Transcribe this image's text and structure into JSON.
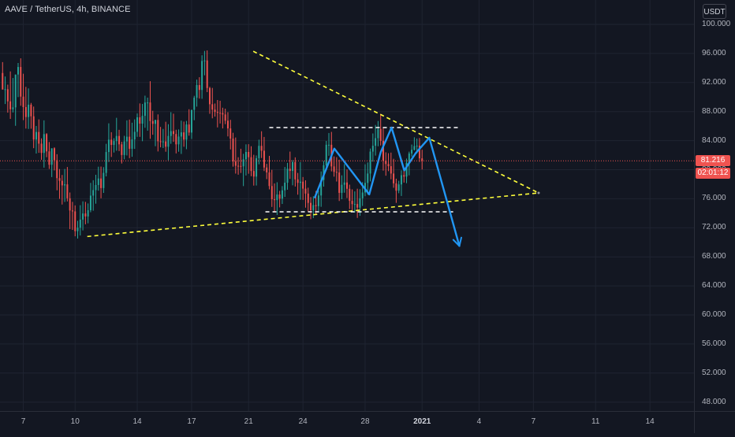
{
  "header": {
    "title": "AAVE / TetherUS, 4h, BINANCE",
    "currency": "USDT"
  },
  "price_scale": {
    "last_price": "81.216",
    "countdown": "02:01:12"
  },
  "colors": {
    "background": "#131722",
    "up_candle": "#26a69a",
    "down_candle": "#ef5350",
    "trendline": "#ffff3b",
    "neckline": "#ffffff",
    "pattern": "#2196f3",
    "last_price_line": "#ef5350"
  },
  "chart_data": {
    "type": "candlestick",
    "title": "AAVE / TetherUS, 4h, BINANCE",
    "x_ticks": [
      "7",
      "10",
      "14",
      "17",
      "21",
      "24",
      "28",
      "2021",
      "4",
      "7",
      "11",
      "14"
    ],
    "y_ticks": [
      "100.000",
      "96.000",
      "92.000",
      "88.000",
      "84.000",
      "80.000",
      "76.000",
      "72.000",
      "68.000",
      "64.000",
      "60.000",
      "56.000",
      "52.000",
      "48.000"
    ],
    "ylim": [
      46,
      102
    ],
    "last_price": 81.216,
    "grid": true,
    "annotations": {
      "triangle_upper": [
        [
          97.8,
          96.3
        ],
        [
          208.0,
          76.8
        ]
      ],
      "triangle_lower": [
        [
          33.7,
          70.8
        ],
        [
          208.0,
          76.8
        ]
      ],
      "resistance_line": [
        [
          104.0,
          85.8
        ],
        [
          178.0,
          85.8
        ]
      ],
      "support_line": [
        [
          102.5,
          74.2
        ],
        [
          175.0,
          74.2
        ]
      ],
      "pattern_path": [
        [
          121.6,
          76.2
        ],
        [
          129.1,
          82.9
        ],
        [
          142.6,
          76.6
        ],
        [
          147.0,
          82.4
        ],
        [
          151.2,
          85.8
        ],
        [
          156.1,
          79.9
        ],
        [
          160.6,
          82.3
        ],
        [
          165.8,
          84.4
        ],
        [
          177.4,
          69.5
        ]
      ]
    },
    "x_range": [
      0,
      268
    ],
    "candles": {
      "open": [
        93.31,
        91.03,
        91.08,
        89.41,
        88.32,
        88.58,
        93.1,
        94.14,
        90.06,
        88.62,
        87.25,
        88.95,
        87.35,
        84.15,
        85.19,
        83.58,
        82.31,
        84.9,
        82.52,
        80.68,
        82.95,
        81.31,
        78.84,
        78.47,
        77.84,
        77.98,
        76.06,
        74.38,
        74.26,
        71.54,
        72.01,
        73.13,
        73.97,
        73.56,
        74.42,
        76.43,
        77.19,
        77.89,
        78.79,
        77.47,
        79.56,
        82.43,
        84.13,
        83.41,
        83.94,
        84.64,
        83.49,
        82.02,
        83.89,
        84.54,
        82.88,
        84.17,
        85.21,
        87.21,
        86.34,
        87.41,
        89.25,
        89.25,
        86.7,
        86.31,
        86.84,
        83.91,
        83.89,
        83.89,
        83.16,
        84.64,
        85.31,
        84.91,
        83.49,
        84.56,
        85.14,
        84.14,
        86.22,
        85.11,
        88.24,
        89.91,
        91.65,
        90.98,
        94.97,
        95.04,
        91.24,
        89.01,
        88.27,
        87.96,
        87.83,
        87.8,
        87.6,
        86.74,
        85.68,
        84.28,
        81.14,
        80.54,
        80.51,
        80.46,
        81.43,
        82.44,
        81.72,
        79.82,
        79.05,
        81.58,
        83.28,
        82.61,
        80.3,
        79.62,
        77.75,
        75.93,
        75.81,
        76.58,
        76.01,
        77.16,
        78.21,
        80.13,
        79.83,
        81.05,
        78.67,
        78.19,
        78.35,
        77.39,
        76.71,
        75.43,
        74.42,
        75.12,
        74.98,
        76.45,
        78.59,
        80.61,
        83.43,
        83.43,
        80.45,
        79.7,
        79.61,
        76.81,
        77.92,
        78.24,
        77.37,
        75.71,
        75.26,
        75.27,
        74.78,
        76.06,
        76.86,
        78.18,
        79.47,
        82.49,
        83.29,
        84.34,
        85.61,
        83.97,
        81.24,
        80.78,
        80.48,
        79.47,
        78.12,
        77.11,
        77.97,
        79.24,
        79.05,
        80.95,
        82.23,
        82.74,
        83.25,
        83.3,
        81.56
      ],
      "high": [
        94.81,
        92.83,
        91.71,
        93.53,
        92.62,
        89.23,
        94.69,
        95.33,
        93.21,
        91.4,
        91.19,
        89.19,
        88.69,
        86.02,
        86.93,
        84.31,
        86.79,
        85.03,
        83.81,
        82.4,
        83.08,
        82.13,
        80.09,
        79.27,
        80.1,
        80.37,
        76.86,
        75.57,
        75.08,
        72.96,
        75.11,
        75.64,
        75.57,
        75.35,
        78.18,
        78.55,
        79.3,
        80.41,
        80.43,
        80.35,
        83.56,
        86.38,
        85.16,
        84.33,
        87.14,
        85.49,
        83.85,
        84.66,
        86.79,
        86.9,
        86.47,
        86.93,
        87.74,
        89.12,
        89.05,
        90.19,
        89.92,
        92.18,
        88.11,
        86.88,
        87.61,
        85.89,
        85.61,
        86.6,
        86.26,
        87.92,
        87.71,
        85.5,
        85.54,
        86.75,
        86.62,
        86.71,
        88.32,
        88.24,
        90.17,
        92.4,
        92.73,
        95.75,
        96.35,
        96.42,
        91.41,
        91.26,
        89.11,
        89.59,
        89.49,
        88.53,
        88.4,
        87.92,
        86.86,
        85.08,
        84.43,
        81.71,
        82.88,
        82.18,
        83.49,
        83.51,
        83.23,
        82.05,
        81.96,
        84.13,
        85.29,
        84.51,
        80.8,
        81.9,
        79.98,
        78.11,
        78.27,
        77.08,
        77.74,
        80.37,
        80.93,
        82.49,
        81.32,
        81.7,
        79.55,
        81.05,
        78.99,
        78.54,
        77.52,
        76.23,
        76.34,
        77.06,
        77.14,
        79.76,
        81.21,
        83.96,
        85.05,
        85.2,
        81.83,
        81.72,
        81.38,
        79.22,
        80.77,
        80.03,
        77.94,
        77.29,
        77.01,
        77.38,
        77.32,
        78.29,
        80.74,
        80.99,
        82.91,
        84.99,
        86.16,
        86.7,
        87.69,
        85.78,
        82.39,
        82.27,
        82.35,
        81.5,
        78.76,
        78.47,
        79.91,
        79.97,
        81.53,
        82.48,
        83.46,
        84.46,
        84.29,
        84.36,
        82.74
      ],
      "low": [
        91.24,
        89.04,
        87.85,
        86.99,
        87.88,
        86.04,
        89.99,
        88.8,
        86.82,
        85.66,
        85.61,
        85.64,
        82.96,
        82.22,
        82.32,
        81.36,
        80.28,
        81.72,
        80.1,
        78.98,
        79.9,
        77.16,
        75.98,
        75.2,
        75.56,
        75.63,
        71.82,
        71.71,
        70.83,
        70.52,
        70.94,
        71.64,
        72.48,
        72.62,
        74.14,
        74.35,
        75.32,
        77.11,
        76.06,
        76.8,
        79.08,
        81.06,
        81.75,
        82.36,
        82.61,
        82.56,
        80.85,
        81.43,
        81.96,
        81.59,
        81.78,
        82.86,
        84.52,
        84.52,
        83.92,
        85.77,
        85.37,
        84.25,
        84.81,
        83.23,
        82.51,
        83.08,
        82.98,
        82.47,
        81.3,
        83.56,
        83.83,
        82.24,
        82.47,
        82.17,
        83.16,
        82.82,
        84.68,
        84.23,
        86.81,
        88.68,
        89.79,
        89.76,
        92.99,
        90.68,
        87.69,
        87.07,
        87.31,
        85.82,
        86.36,
        85.68,
        86.27,
        84.58,
        82.79,
        80.42,
        79.46,
        79.31,
        79.55,
        77.74,
        79.2,
        79.44,
        79.1,
        77.81,
        77.82,
        80.74,
        81.61,
        79.81,
        78.7,
        77.29,
        74.87,
        74.22,
        73.76,
        74.81,
        75.28,
        76.25,
        77.24,
        78.73,
        77.85,
        77.68,
        76.56,
        75.86,
        75.84,
        74.77,
        74.24,
        73.18,
        73.33,
        73.82,
        74.13,
        74.89,
        77.67,
        79.95,
        81.91,
        79.77,
        79.04,
        78.37,
        75.69,
        75.94,
        76.83,
        76.1,
        74.58,
        74.26,
        74.08,
        73.36,
        73.65,
        75.01,
        76.35,
        76.56,
        78.39,
        81.11,
        81.94,
        83.22,
        83.33,
        79.87,
        79.17,
        79.8,
        78.68,
        77.51,
        75.43,
        76.76,
        76.38,
        78.22,
        78.14,
        79.22,
        81.8,
        82.65,
        82.23,
        81.07,
        80.03
      ],
      "close": [
        91.03,
        91.08,
        89.41,
        88.32,
        88.58,
        93.1,
        94.14,
        90.06,
        88.62,
        87.25,
        88.95,
        87.35,
        84.15,
        85.19,
        83.58,
        82.31,
        84.9,
        82.52,
        80.68,
        82.95,
        81.31,
        78.84,
        78.47,
        77.84,
        77.98,
        76.06,
        74.38,
        74.26,
        71.54,
        72.01,
        73.13,
        73.97,
        73.56,
        74.42,
        76.43,
        77.19,
        77.89,
        78.79,
        77.47,
        79.56,
        82.43,
        84.13,
        83.41,
        83.94,
        84.64,
        83.49,
        82.02,
        83.89,
        84.54,
        82.88,
        84.17,
        85.21,
        87.21,
        86.34,
        87.41,
        89.25,
        89.25,
        86.7,
        86.31,
        86.84,
        83.91,
        83.89,
        83.89,
        83.16,
        84.64,
        85.31,
        84.91,
        83.49,
        84.56,
        85.14,
        84.14,
        86.22,
        85.11,
        88.24,
        89.91,
        91.65,
        90.98,
        94.97,
        95.04,
        91.24,
        89.01,
        88.27,
        87.96,
        87.83,
        87.8,
        87.6,
        86.74,
        85.68,
        84.28,
        81.14,
        80.54,
        80.51,
        80.46,
        81.43,
        82.44,
        81.72,
        79.82,
        79.05,
        81.58,
        83.28,
        82.61,
        80.3,
        79.62,
        77.75,
        75.93,
        75.81,
        76.58,
        76.01,
        77.16,
        78.21,
        80.13,
        79.83,
        81.05,
        78.67,
        78.19,
        78.35,
        77.39,
        76.71,
        75.43,
        74.42,
        75.12,
        74.98,
        76.45,
        78.59,
        80.61,
        83.43,
        83.43,
        80.45,
        79.7,
        79.61,
        76.81,
        77.92,
        78.24,
        77.37,
        75.71,
        75.26,
        75.27,
        74.78,
        76.06,
        76.86,
        78.18,
        79.47,
        82.49,
        83.29,
        84.34,
        85.61,
        83.97,
        81.24,
        80.78,
        80.48,
        79.47,
        78.12,
        77.11,
        77.97,
        79.24,
        79.05,
        80.95,
        82.23,
        82.74,
        83.25,
        83.3,
        81.56,
        81.22
      ]
    }
  }
}
